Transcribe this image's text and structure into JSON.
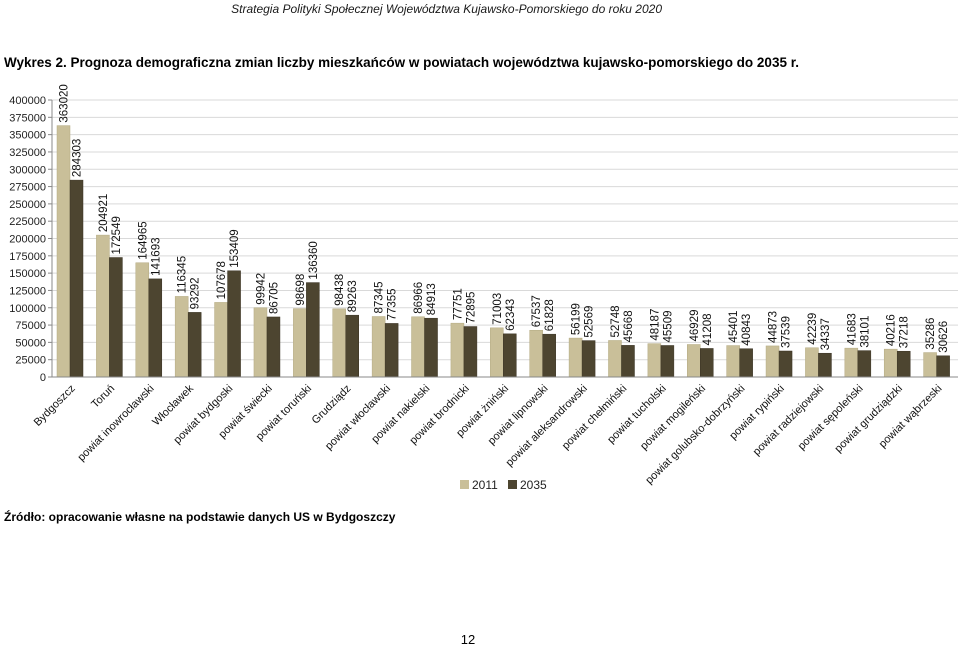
{
  "header": {
    "running_title": "Strategia Polityki Społecznej Województwa Kujawsko-Pomorskiego do roku 2020"
  },
  "figure": {
    "title": "Wykres 2. Prognoza demograficzna zmian liczby mieszkańców w powiatach województwa kujawsko-pomorskiego do 2035 r."
  },
  "source": "Źródło: opracowanie własne na podstawie danych US w Bydgoszczy",
  "page_number": "12",
  "chart_data": {
    "type": "bar",
    "title": "",
    "xlabel": "",
    "ylabel": "",
    "ylim": [
      0,
      400000
    ],
    "yticks": [
      "0",
      "25000",
      "50000",
      "75000",
      "100000",
      "125000",
      "150000",
      "175000",
      "200000",
      "225000",
      "250000",
      "275000",
      "300000",
      "325000",
      "350000",
      "375000",
      "400000"
    ],
    "grid": true,
    "legend_position": "bottom",
    "categories": [
      "Bydgoszcz",
      "Toruń",
      "powiat inowrocławski",
      "Włocławek",
      "powiat bydgoski",
      "powiat świecki",
      "powiat toruński",
      "Grudziądz",
      "powiat włocławski",
      "powiat nakielski",
      "powiat brodnicki",
      "powiat żniński",
      "powiat lipnowski",
      "powiat aleksandrowski",
      "powiat chełmiński",
      "powiat tucholski",
      "powiat mogileński",
      "powiat golubsko-dobrzyński",
      "powiat rypiński",
      "powiat radziejowski",
      "powiat sępoleński",
      "powiat grudziądzki",
      "powiat wąbrzeski"
    ],
    "series": [
      {
        "name": "2011",
        "color": "#c9bf99",
        "values": [
          363020,
          204921,
          164965,
          116345,
          107678,
          99942,
          98698,
          98438,
          87345,
          86966,
          77751,
          71003,
          67537,
          56199,
          52748,
          48187,
          46929,
          45401,
          44873,
          42239,
          41683,
          40216,
          35286
        ]
      },
      {
        "name": "2035",
        "color": "#4d4530",
        "values": [
          284303,
          172549,
          141693,
          93292,
          153409,
          86705,
          136360,
          89263,
          77355,
          84913,
          72895,
          62343,
          61828,
          52569,
          45668,
          45509,
          41208,
          40843,
          37539,
          34337,
          38101,
          37218,
          30626
        ]
      }
    ]
  }
}
